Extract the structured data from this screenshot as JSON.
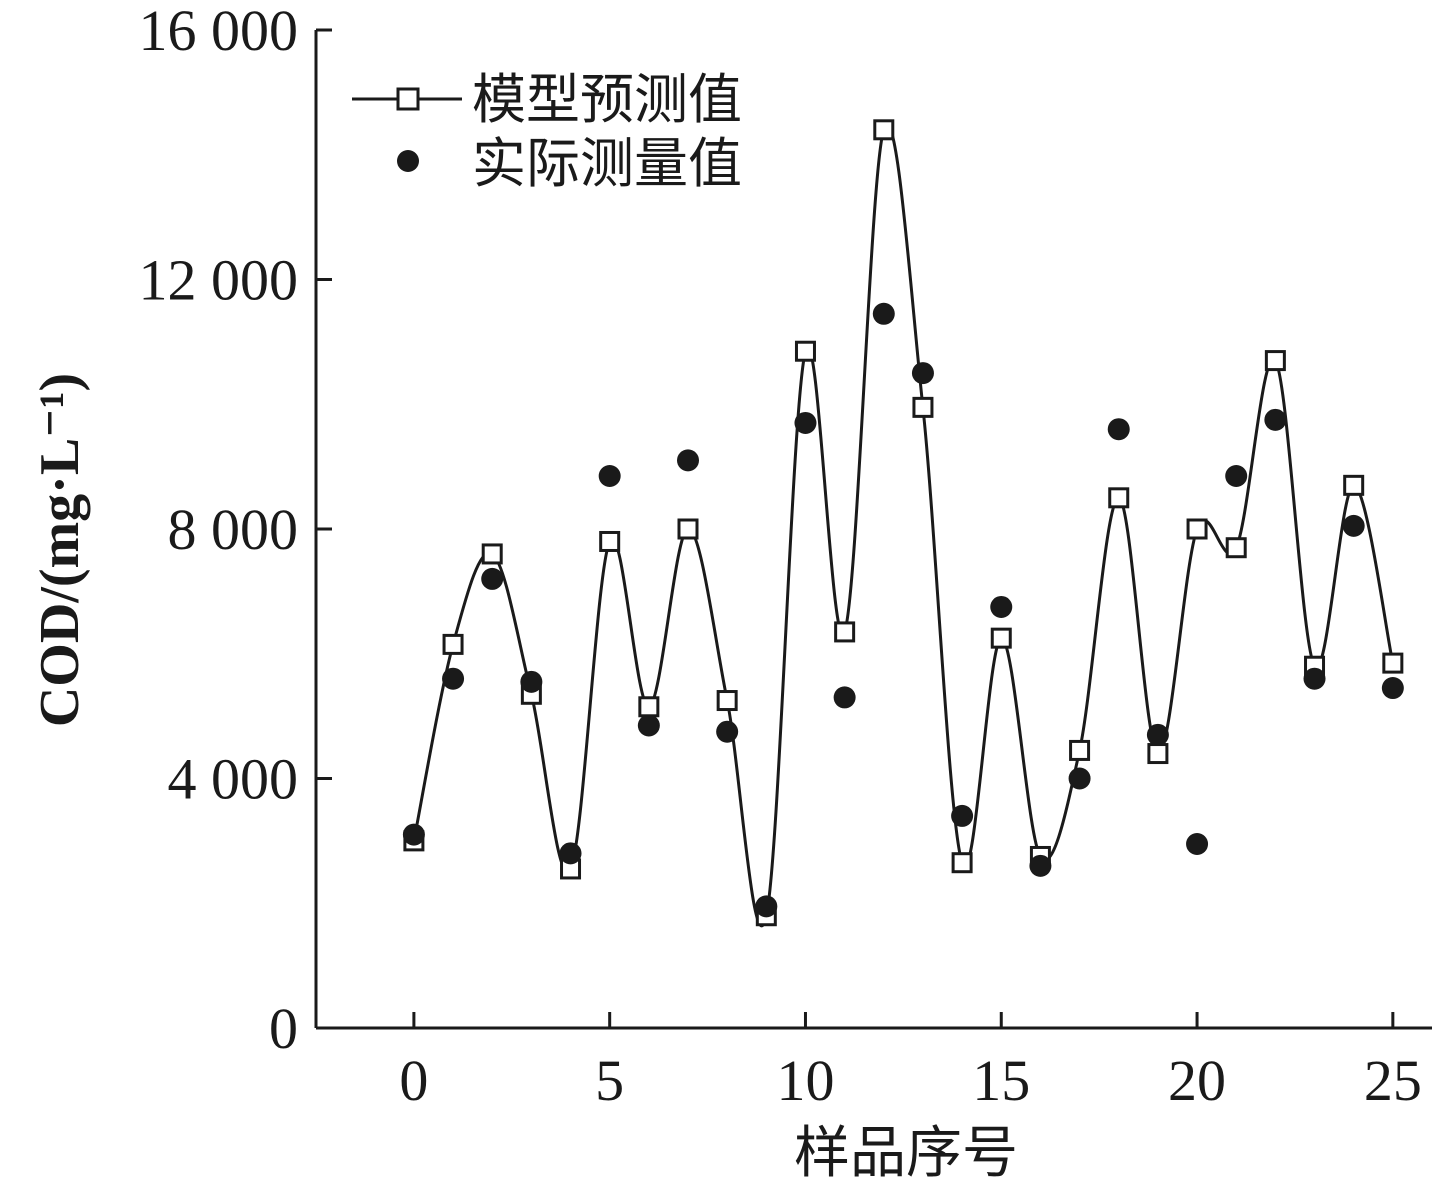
{
  "chart_data": {
    "type": "line",
    "xlabel": "样品序号",
    "ylabel": "COD/(mg·L⁻¹)",
    "xlim": [
      -2.5,
      26
    ],
    "ylim": [
      0,
      16000
    ],
    "xticks": [
      0,
      5,
      10,
      15,
      20,
      25
    ],
    "xtick_labels": [
      "0",
      "5",
      "10",
      "15",
      "20",
      "25"
    ],
    "yticks": [
      0,
      4000,
      8000,
      12000,
      16000
    ],
    "ytick_labels": [
      "0",
      "4 000",
      "8 000",
      "12 000",
      "16 000"
    ],
    "grid": false,
    "legend_position": "top-left",
    "series": [
      {
        "name": "模型预测值",
        "style": "line-open-square",
        "x": [
          0,
          1,
          2,
          3,
          4,
          5,
          6,
          7,
          8,
          9,
          10,
          11,
          12,
          13,
          14,
          15,
          16,
          17,
          18,
          19,
          20,
          21,
          22,
          23,
          24,
          25
        ],
        "values": [
          3000,
          6150,
          7600,
          5350,
          2550,
          7800,
          5150,
          8000,
          5250,
          1800,
          10850,
          6350,
          14400,
          9950,
          2650,
          6250,
          2750,
          4450,
          8500,
          4400,
          8000,
          7700,
          10700,
          5800,
          8700,
          5850
        ]
      },
      {
        "name": "实际测量值",
        "style": "filled-circle",
        "x": [
          0,
          1,
          2,
          3,
          4,
          5,
          6,
          7,
          8,
          9,
          10,
          11,
          12,
          13,
          14,
          15,
          16,
          17,
          18,
          19,
          20,
          21,
          22,
          23,
          24,
          25
        ],
        "values": [
          3100,
          5600,
          7200,
          5550,
          2800,
          8850,
          4850,
          9100,
          4750,
          1950,
          9700,
          5300,
          11450,
          10500,
          3400,
          6750,
          2600,
          4000,
          9600,
          4700,
          2950,
          8850,
          9750,
          5600,
          8050,
          5450
        ]
      }
    ]
  }
}
